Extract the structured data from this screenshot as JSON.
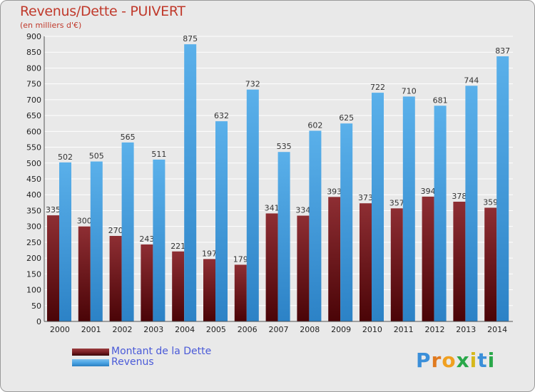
{
  "title": "Revenus/Dette - PUIVERT",
  "subtitle": "(en milliers d'€)",
  "logo": "Proxiti",
  "colors": {
    "dette": "#7a1f24",
    "revenus": "#4aa3e3",
    "grid": "#ffffff",
    "text": "#c0392b"
  },
  "chart_data": {
    "type": "bar",
    "categories": [
      "2000",
      "2001",
      "2002",
      "2003",
      "2004",
      "2005",
      "2006",
      "2007",
      "2008",
      "2009",
      "2010",
      "2011",
      "2012",
      "2013",
      "2014"
    ],
    "series": [
      {
        "name": "Montant de la Dette",
        "values": [
          335,
          300,
          270,
          243,
          221,
          197,
          179,
          341,
          334,
          393,
          373,
          357,
          394,
          378,
          359
        ]
      },
      {
        "name": "Revenus",
        "values": [
          502,
          505,
          565,
          511,
          875,
          632,
          732,
          535,
          602,
          625,
          722,
          710,
          681,
          744,
          837
        ]
      }
    ],
    "ylim": [
      0,
      900
    ],
    "yticks": [
      0,
      50,
      100,
      150,
      200,
      250,
      300,
      350,
      400,
      450,
      500,
      550,
      600,
      650,
      700,
      750,
      800,
      850,
      900
    ],
    "grid": true,
    "legend": "bottom-left"
  }
}
